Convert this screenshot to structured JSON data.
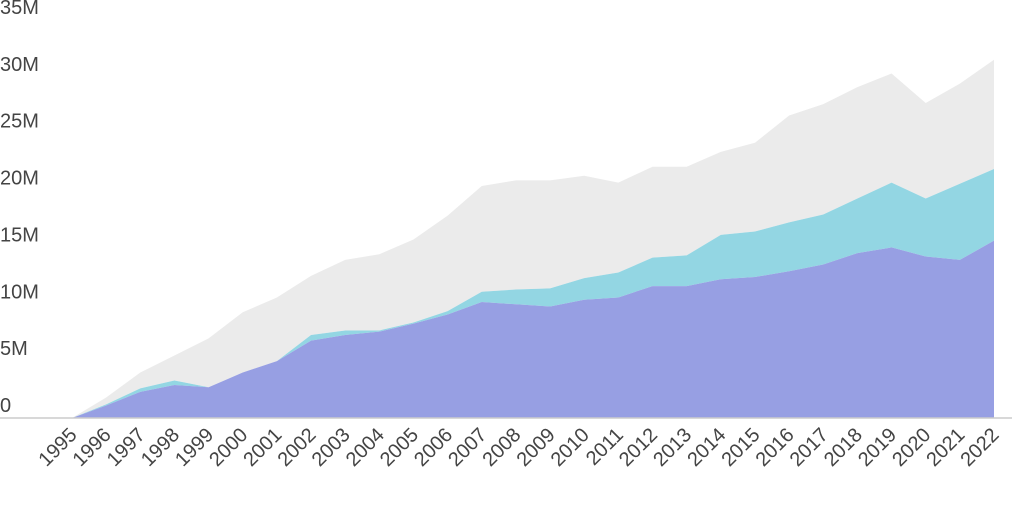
{
  "chart_data": {
    "type": "stacked_area",
    "categories": [
      "1995",
      "1996",
      "1997",
      "1998",
      "1999",
      "2000",
      "2001",
      "2002",
      "2003",
      "2004",
      "2005",
      "2006",
      "2007",
      "2008",
      "2009",
      "2010",
      "2011",
      "2012",
      "2013",
      "2014",
      "2015",
      "2016",
      "2017",
      "2018",
      "2019",
      "2020",
      "2021",
      "2022"
    ],
    "series": [
      {
        "color": "#979fe3",
        "values": [
          0,
          1100000,
          2300000,
          2900000,
          2700000,
          4000000,
          5000000,
          6800000,
          7300000,
          7600000,
          8300000,
          9100000,
          10200000,
          10000000,
          9800000,
          10400000,
          10600000,
          11600000,
          11600000,
          12200000,
          12400000,
          12900000,
          13500000,
          14500000,
          15000000,
          14200000,
          13900000,
          15600000
        ]
      },
      {
        "color": "#93d6e3",
        "values": [
          0,
          100000,
          300000,
          400000,
          0,
          0,
          0,
          500000,
          400000,
          100000,
          100000,
          300000,
          900000,
          1300000,
          1600000,
          1900000,
          2200000,
          2500000,
          2700000,
          3900000,
          4000000,
          4300000,
          4400000,
          4800000,
          5700000,
          5100000,
          6700000,
          6300000
        ]
      },
      {
        "color": "#ebebeb",
        "values": [
          0,
          600000,
          1400000,
          2200000,
          4300000,
          5300000,
          5600000,
          5200000,
          6200000,
          6700000,
          7300000,
          8400000,
          9300000,
          9600000,
          9500000,
          9000000,
          7900000,
          8000000,
          7800000,
          7300000,
          7800000,
          9400000,
          9700000,
          9800000,
          9600000,
          8400000,
          8800000,
          9600000
        ]
      }
    ],
    "ylim": [
      0,
      35000000
    ],
    "yticks": [
      {
        "value": 0,
        "label": "0"
      },
      {
        "value": 5000000,
        "label": "5M"
      },
      {
        "value": 10000000,
        "label": "10M"
      },
      {
        "value": 15000000,
        "label": "15M"
      },
      {
        "value": 20000000,
        "label": "20M"
      },
      {
        "value": 25000000,
        "label": "25M"
      },
      {
        "value": 30000000,
        "label": "30M"
      },
      {
        "value": 35000000,
        "label": "35M"
      }
    ],
    "grid": false
  }
}
